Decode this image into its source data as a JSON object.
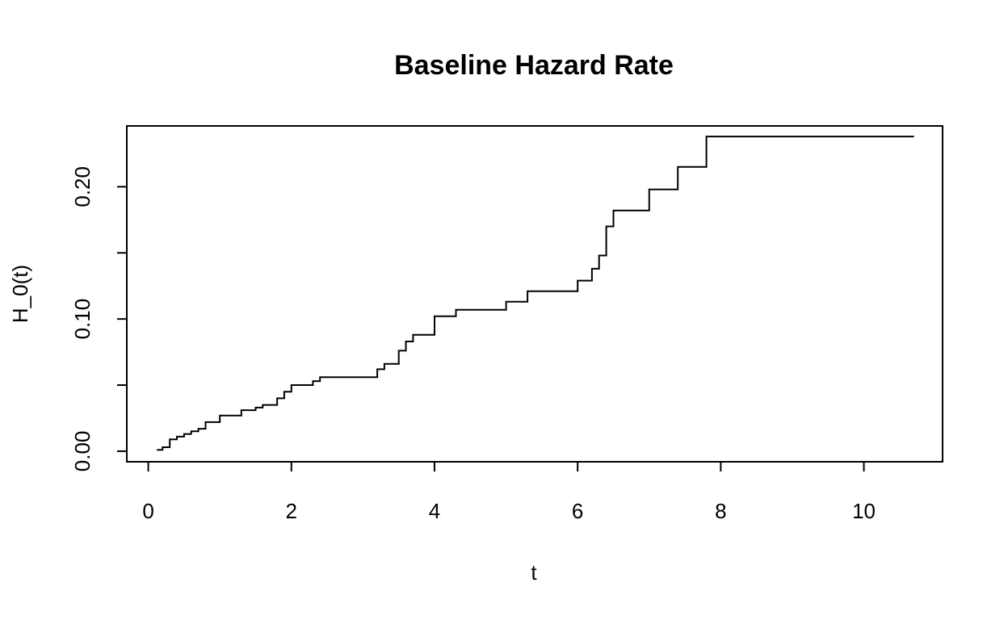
{
  "chart_data": {
    "type": "line",
    "step": true,
    "title": "Baseline Hazard Rate",
    "xlabel": "t",
    "ylabel": "H_0(t)",
    "xlim": [
      -0.3,
      11.1
    ],
    "ylim": [
      -0.008,
      0.246
    ],
    "x_ticks": [
      0,
      2,
      4,
      6,
      8,
      10
    ],
    "x_tick_labels": [
      "0",
      "2",
      "4",
      "6",
      "8",
      "10"
    ],
    "y_ticks": [
      0.0,
      0.05,
      0.1,
      0.15,
      0.2
    ],
    "y_tick_labels": [
      "0.00",
      "",
      "0.10",
      "",
      "0.20"
    ],
    "grid": false,
    "legend": "none",
    "series": [
      {
        "color": "#000000",
        "x": [
          0.12,
          0.2,
          0.3,
          0.4,
          0.5,
          0.6,
          0.7,
          0.8,
          1.0,
          1.3,
          1.5,
          1.6,
          1.8,
          1.9,
          2.0,
          2.3,
          2.4,
          3.2,
          3.3,
          3.5,
          3.6,
          3.7,
          3.85,
          4.0,
          4.3,
          5.0,
          5.3,
          6.0,
          6.2,
          6.3,
          6.4,
          6.5,
          7.0,
          7.4,
          7.8,
          10.7
        ],
        "y": [
          0.001,
          0.003,
          0.009,
          0.011,
          0.013,
          0.015,
          0.017,
          0.022,
          0.027,
          0.031,
          0.033,
          0.035,
          0.04,
          0.045,
          0.05,
          0.053,
          0.056,
          0.062,
          0.066,
          0.076,
          0.083,
          0.088,
          0.088,
          0.102,
          0.107,
          0.113,
          0.121,
          0.129,
          0.138,
          0.148,
          0.17,
          0.182,
          0.198,
          0.215,
          0.238,
          0.238
        ]
      }
    ]
  }
}
